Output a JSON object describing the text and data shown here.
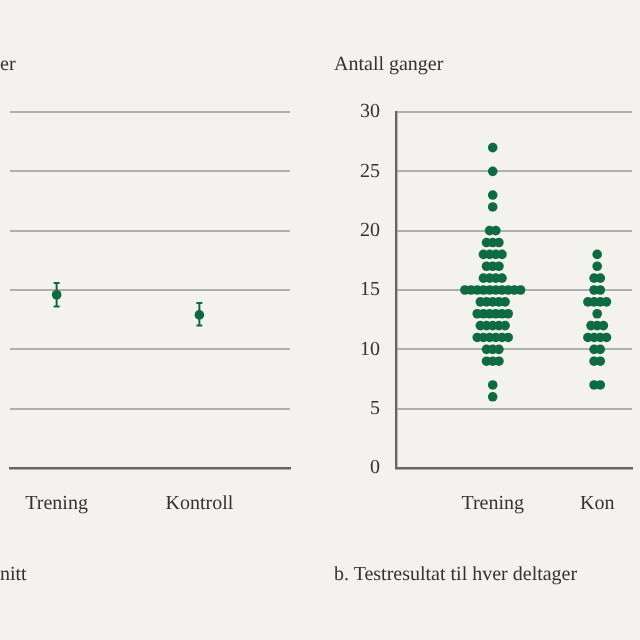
{
  "chart_data": [
    {
      "type": "scatter",
      "ylabel": "er",
      "annotations": [
        "nitt"
      ],
      "categories": [
        "Trening",
        "Kontroll"
      ],
      "values": [
        14.6,
        12.9
      ],
      "errors": [
        [
          13.6,
          15.6
        ],
        [
          12.0,
          13.9
        ]
      ],
      "color": "#0e6b41",
      "ylim": [
        0,
        30
      ],
      "yticks": [
        {
          "value": 0,
          "label": null
        },
        {
          "value": 5,
          "label": null
        },
        {
          "value": 10,
          "label": null
        },
        {
          "value": 15,
          "label": null
        },
        {
          "value": 20,
          "label": null
        },
        {
          "value": 25,
          "label": null
        },
        {
          "value": 30,
          "label": null
        }
      ],
      "tick_labels": "x",
      "grid": "y",
      "marker": "circle"
    },
    {
      "type": "scatter",
      "ylabel": "Antall ganger",
      "annotations": [
        "b. Testresultat til hver deltager"
      ],
      "categories": [
        "Trening",
        "Kon"
      ],
      "series": [
        {
          "color": "#0e6b41",
          "x": [
            "Trening",
            "Trening",
            "Trening",
            "Trening",
            "Trening",
            "Trening",
            "Trening",
            "Trening",
            "Trening",
            "Trening",
            "Trening",
            "Trening",
            "Trening",
            "Trening",
            "Trening",
            "Trening",
            "Trening",
            "Trening",
            "Trening",
            "Trening",
            "Trening",
            "Trening",
            "Trening",
            "Trening",
            "Trening",
            "Trening",
            "Trening",
            "Trening",
            "Trening",
            "Trening",
            "Trening",
            "Trening",
            "Trening",
            "Trening",
            "Trening",
            "Trening",
            "Trening",
            "Trening",
            "Trening",
            "Trening",
            "Trening",
            "Trening",
            "Trening",
            "Trening",
            "Trening",
            "Trening",
            "Trening",
            "Trening",
            "Trening",
            "Trening",
            "Trening",
            "Trening",
            "Trening",
            "Trening",
            "Trening",
            "Trening",
            "Trening",
            "Trening",
            "Trening",
            "Trening",
            "Kon",
            "Kon",
            "Kon",
            "Kon",
            "Kon",
            "Kon",
            "Kon",
            "Kon",
            "Kon",
            "Kon",
            "Kon",
            "Kon",
            "Kon",
            "Kon",
            "Kon",
            "Kon",
            "Kon",
            "Kon",
            "Kon",
            "Kon",
            "Kon",
            "Kon",
            "Kon",
            "Kon"
          ],
          "values": [
            27,
            25,
            23,
            22,
            20,
            20,
            19,
            19,
            19,
            18,
            18,
            18,
            18,
            17,
            17,
            17,
            16,
            16,
            16,
            16,
            15,
            15,
            15,
            15,
            15,
            15,
            15,
            15,
            15,
            15,
            14,
            14,
            14,
            14,
            14,
            13,
            13,
            13,
            13,
            13,
            13,
            12,
            12,
            12,
            12,
            12,
            11,
            11,
            11,
            11,
            11,
            11,
            10,
            10,
            10,
            9,
            9,
            9,
            7,
            6,
            18,
            17,
            16,
            16,
            15,
            15,
            14,
            14,
            14,
            14,
            13,
            12,
            12,
            12,
            11,
            11,
            11,
            11,
            10,
            10,
            9,
            9,
            7,
            7
          ]
        }
      ],
      "ylim": [
        0,
        30
      ],
      "yticks": [
        0,
        5,
        10,
        15,
        20,
        25,
        30
      ],
      "grid": "y",
      "marker": "circle"
    }
  ]
}
